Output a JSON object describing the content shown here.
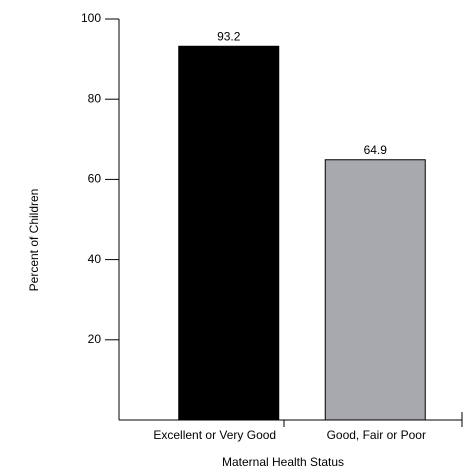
{
  "chart_data": {
    "type": "bar",
    "x_label": "Maternal Health Status",
    "y_label": "Percent of Children",
    "categories": [
      "Excellent or Very Good",
      "Good, Fair or Poor"
    ],
    "values": [
      93.2,
      64.9
    ],
    "colors": [
      "#000000",
      "#a7a9ac"
    ],
    "ylim": [
      0,
      100
    ],
    "yticks": [
      20,
      40,
      60,
      80,
      100
    ]
  }
}
